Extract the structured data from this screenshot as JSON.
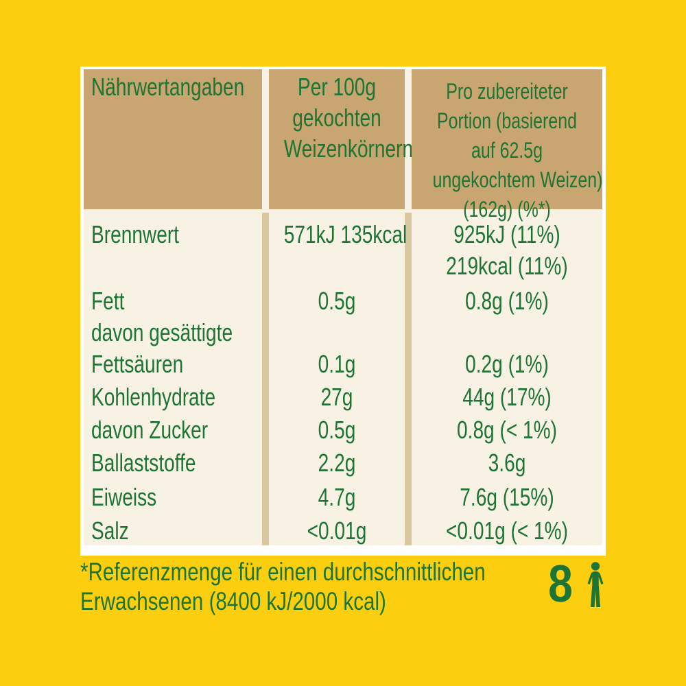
{
  "colors": {
    "background": "#FBCF10",
    "panel": "#FFFFFF",
    "header_bg": "#C8A571",
    "body_bg": "#F7F2E4",
    "separator": "#D9C7A1",
    "text": "#1E7433"
  },
  "table": {
    "header": {
      "col1": "Nährwertangaben",
      "col2_lines": [
        "Per 100g",
        "gekochten",
        "Weizenkörnern"
      ],
      "col3_lines": [
        "Pro zubereiteter",
        "Portion (basierend",
        "auf 62.5g",
        "ungekochtem Weizen)",
        "(162g) (%*)"
      ]
    },
    "rows": [
      {
        "label_lines": [
          "Brennwert"
        ],
        "per_100g": "571kJ 135kcal",
        "per_portion_lines": [
          "925kJ (11%)",
          "219kcal (11%)"
        ]
      },
      {
        "label_lines": [
          "Fett"
        ],
        "per_100g": "0.5g",
        "per_portion_lines": [
          "0.8g (1%)"
        ]
      },
      {
        "label_lines": [
          "davon gesättigte",
          "Fettsäuren"
        ],
        "per_100g": "0.1g",
        "per_portion_lines": [
          "0.2g (1%)"
        ]
      },
      {
        "label_lines": [
          "Kohlenhydrate"
        ],
        "per_100g": "27g",
        "per_portion_lines": [
          "44g (17%)"
        ]
      },
      {
        "label_lines": [
          "davon Zucker"
        ],
        "per_100g": "0.5g",
        "per_portion_lines": [
          "0.8g (< 1%)"
        ]
      },
      {
        "label_lines": [
          "Ballaststoffe"
        ],
        "per_100g": "2.2g",
        "per_portion_lines": [
          "3.6g"
        ]
      },
      {
        "label_lines": [
          "Eiweiss"
        ],
        "per_100g": "4.7g",
        "per_portion_lines": [
          "7.6g (15%)"
        ]
      },
      {
        "label_lines": [
          "Salz"
        ],
        "per_100g": "<0.01g",
        "per_portion_lines": [
          "<0.01g (< 1%)"
        ]
      }
    ]
  },
  "footer": {
    "note_lines": [
      "*Referenzmenge für einen durchschnittlichen",
      "Erwachsenen (8400 kJ/2000 kcal)"
    ],
    "portions": "8",
    "portions_icon": "person-icon"
  }
}
